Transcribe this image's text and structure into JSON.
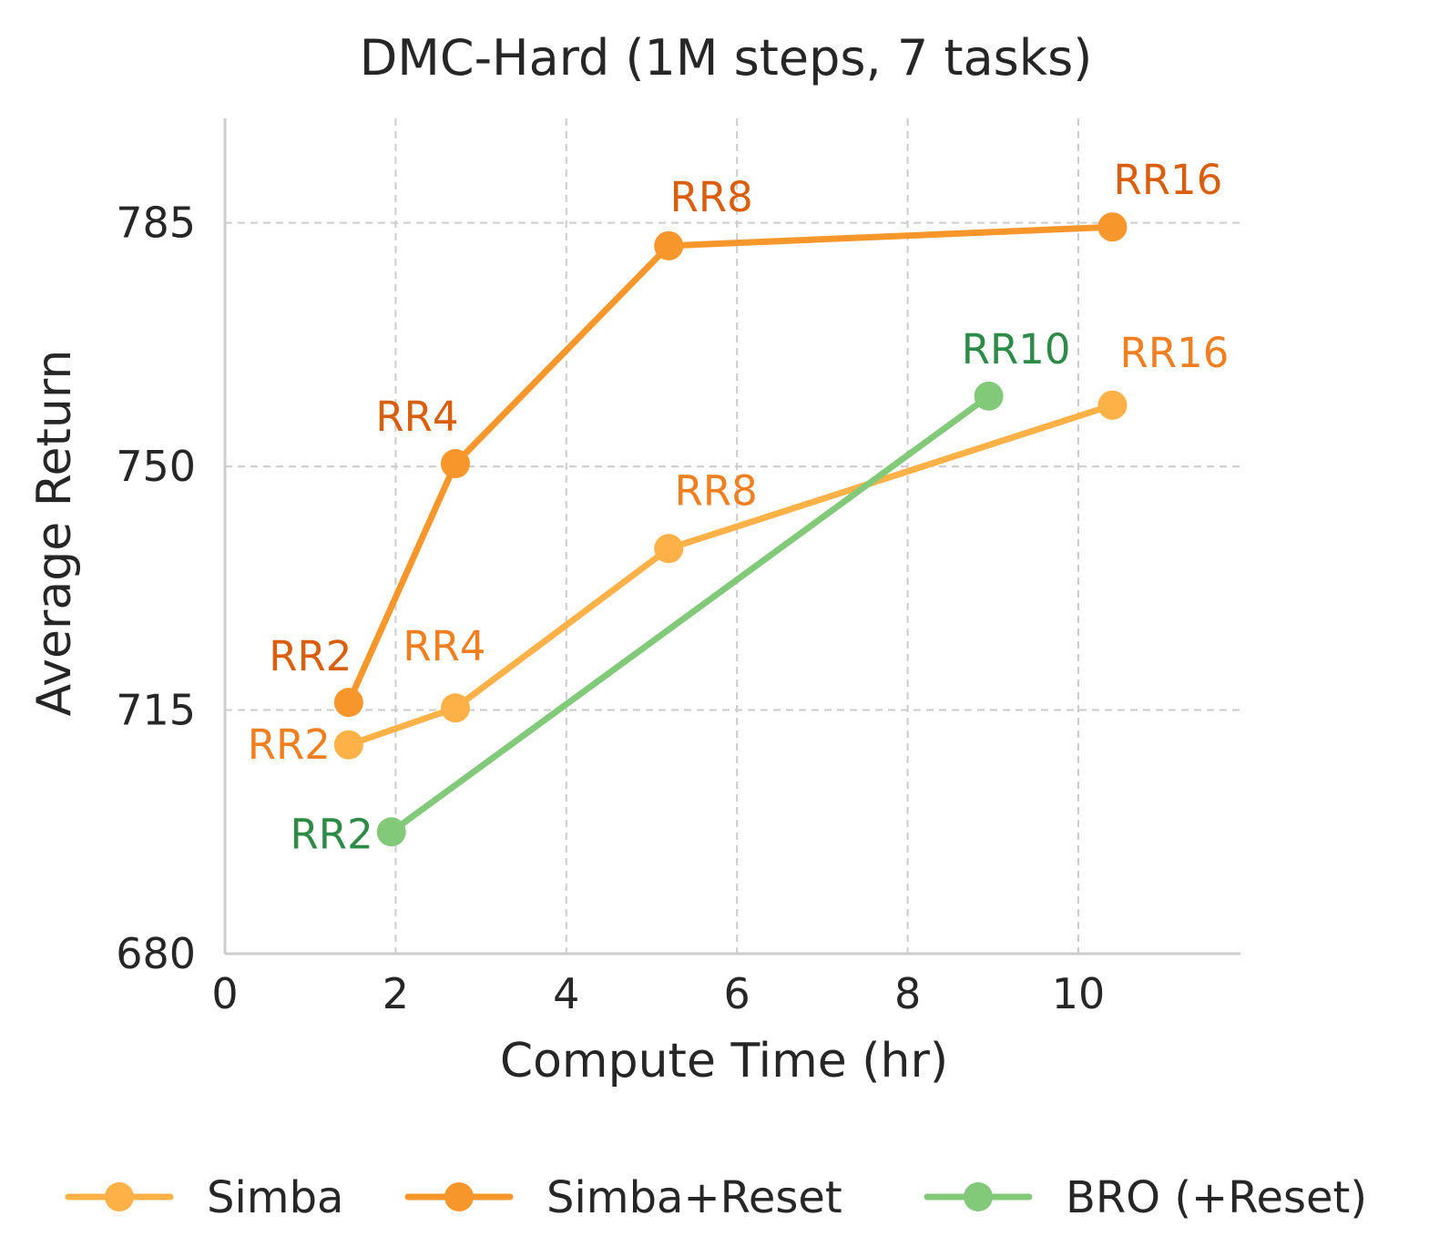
{
  "chart_data": {
    "type": "line",
    "title": "DMC-Hard (1M steps, 7 tasks)",
    "xlabel": "Compute Time (hr)",
    "ylabel": "Average Return",
    "xlim": [
      0,
      11.9
    ],
    "ylim": [
      680,
      800
    ],
    "xticks": [
      0,
      2,
      4,
      6,
      8,
      10
    ],
    "yticks": [
      680,
      715,
      750,
      785
    ],
    "grid": true,
    "legend_position": "bottom",
    "series": [
      {
        "name": "Simba",
        "color": "#fdb147",
        "label_color": "#ef7f20",
        "points": [
          {
            "x": 1.45,
            "y": 710.0,
            "label": "RR2"
          },
          {
            "x": 2.7,
            "y": 715.3,
            "label": "RR4"
          },
          {
            "x": 5.2,
            "y": 738.2,
            "label": "RR8"
          },
          {
            "x": 10.4,
            "y": 758.8,
            "label": "RR16"
          }
        ]
      },
      {
        "name": "Simba+Reset",
        "color": "#f7962b",
        "label_color": "#d95f0e",
        "points": [
          {
            "x": 1.45,
            "y": 716.1,
            "label": "RR2"
          },
          {
            "x": 2.7,
            "y": 750.4,
            "label": "RR4"
          },
          {
            "x": 5.2,
            "y": 781.7,
            "label": "RR8"
          },
          {
            "x": 10.4,
            "y": 784.4,
            "label": "RR16"
          }
        ]
      },
      {
        "name": "BRO (+Reset)",
        "color": "#82ca7a",
        "label_color": "#2e8b47",
        "points": [
          {
            "x": 1.95,
            "y": 697.5,
            "label": "RR2"
          },
          {
            "x": 8.95,
            "y": 760.1,
            "label": "RR10"
          }
        ]
      }
    ]
  }
}
